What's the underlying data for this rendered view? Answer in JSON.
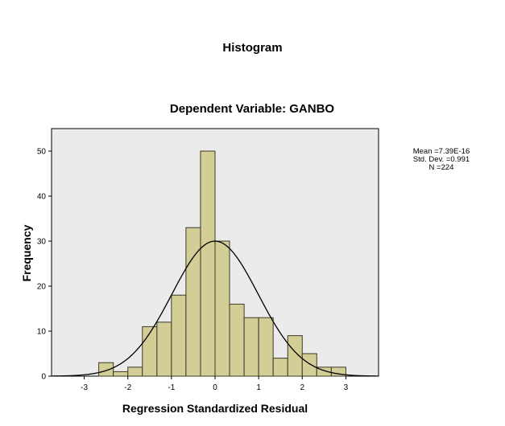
{
  "page_title": "Histogram",
  "stats": {
    "mean": "Mean =7.39E-16",
    "std_dev": "Std. Dev. =0.991",
    "n": "N =224"
  },
  "colors": {
    "plot_background": "#ebebeb",
    "bar_fill": "#d3ce96",
    "bar_stroke": "#3a3a28",
    "curve": "#000000"
  },
  "chart_data": {
    "type": "histogram",
    "title": "Dependent Variable: GANBO",
    "xlabel": "Regression Standardized Residual",
    "ylabel": "Frequency",
    "xlim": [
      -3.75,
      3.75
    ],
    "ylim": [
      0,
      55
    ],
    "xticks": [
      -3,
      -2,
      -1,
      0,
      1,
      2,
      3
    ],
    "yticks": [
      0,
      10,
      20,
      30,
      40,
      50
    ],
    "bin_width": 0.333,
    "bins": [
      {
        "start": -2.667,
        "end": -2.333,
        "count": 3
      },
      {
        "start": -2.333,
        "end": -2.0,
        "count": 1
      },
      {
        "start": -2.0,
        "end": -1.667,
        "count": 2
      },
      {
        "start": -1.667,
        "end": -1.333,
        "count": 11
      },
      {
        "start": -1.333,
        "end": -1.0,
        "count": 12
      },
      {
        "start": -1.0,
        "end": -0.667,
        "count": 18
      },
      {
        "start": -0.667,
        "end": -0.333,
        "count": 33
      },
      {
        "start": -0.333,
        "end": 0.0,
        "count": 50
      },
      {
        "start": 0.0,
        "end": 0.333,
        "count": 30
      },
      {
        "start": 0.333,
        "end": 0.667,
        "count": 16
      },
      {
        "start": 0.667,
        "end": 1.0,
        "count": 13
      },
      {
        "start": 1.0,
        "end": 1.333,
        "count": 13
      },
      {
        "start": 1.333,
        "end": 1.667,
        "count": 4
      },
      {
        "start": 1.667,
        "end": 2.0,
        "count": 9
      },
      {
        "start": 2.0,
        "end": 2.333,
        "count": 5
      },
      {
        "start": 2.333,
        "end": 2.667,
        "count": 2
      },
      {
        "start": 2.667,
        "end": 3.0,
        "count": 2
      }
    ],
    "normal_curve": {
      "mean": 0,
      "std_dev": 0.991,
      "peak": 30
    }
  }
}
